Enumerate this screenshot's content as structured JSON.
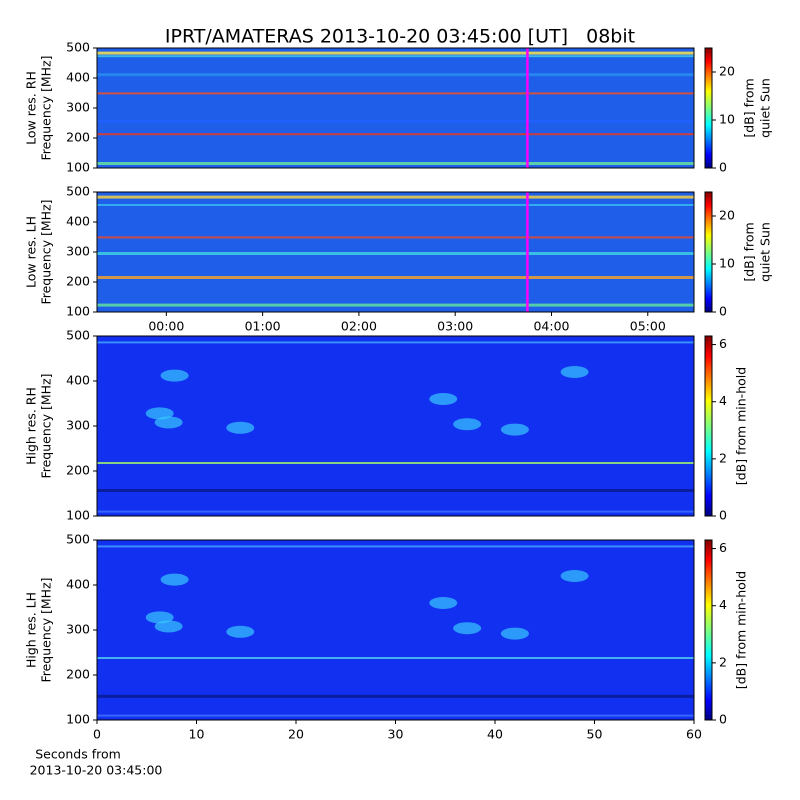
{
  "title": "IPRT/AMATERAS 2013-10-20 03:45:00 [UT]   08bit",
  "chart_data": [
    {
      "type": "heatmap",
      "colormap": "jet",
      "ylabel": [
        "Low res. RH",
        "Frequency [MHz]"
      ],
      "ylim": [
        100,
        500
      ],
      "yticks": [
        100,
        200,
        300,
        400,
        500
      ],
      "xlim": [
        -0.72,
        5.48
      ],
      "marker_x": 3.75,
      "marker_color": "#ff00ff",
      "colorbar": {
        "label": [
          "[dB] from",
          "quiet Sun"
        ],
        "lim": [
          0,
          25
        ],
        "ticks": [
          0,
          10,
          20
        ]
      }
    },
    {
      "type": "heatmap",
      "colormap": "jet",
      "ylabel": [
        "Low res. LH",
        "Frequency [MHz]"
      ],
      "ylim": [
        100,
        500
      ],
      "yticks": [
        100,
        200,
        300,
        400,
        500
      ],
      "xlim": [
        -0.72,
        5.48
      ],
      "xticks": [
        {
          "value": 0,
          "label": "00:00"
        },
        {
          "value": 1,
          "label": "01:00"
        },
        {
          "value": 2,
          "label": "02:00"
        },
        {
          "value": 3,
          "label": "03:00"
        },
        {
          "value": 4,
          "label": "04:00"
        },
        {
          "value": 5,
          "label": "05:00"
        }
      ],
      "marker_x": 3.75,
      "marker_color": "#ff00ff",
      "colorbar": {
        "label": [
          "[dB] from",
          "quiet Sun"
        ],
        "lim": [
          0,
          25
        ],
        "ticks": [
          0,
          10,
          20
        ]
      }
    },
    {
      "type": "heatmap",
      "colormap": "jet",
      "ylabel": [
        "High res. RH",
        "Frequency [MHz]"
      ],
      "ylim": [
        100,
        500
      ],
      "yticks": [
        100,
        200,
        300,
        400,
        500
      ],
      "xlim": [
        0,
        60
      ],
      "colorbar": {
        "label": [
          "[dB] from min-hold"
        ],
        "lim": [
          0,
          6.3
        ],
        "ticks": [
          0,
          2,
          4,
          6
        ]
      }
    },
    {
      "type": "heatmap",
      "colormap": "jet",
      "ylabel": [
        "High res. LH",
        "Frequency [MHz]"
      ],
      "ylim": [
        100,
        500
      ],
      "yticks": [
        100,
        200,
        300,
        400,
        500
      ],
      "xlim": [
        0,
        60
      ],
      "xticks": [
        0,
        10,
        20,
        30,
        40,
        50,
        60
      ],
      "xlabel": [
        "Seconds from",
        "2013-10-20 03:45:00"
      ],
      "colorbar": {
        "label": [
          "[dB] from min-hold"
        ],
        "lim": [
          0,
          6.3
        ],
        "ticks": [
          0,
          2,
          4,
          6
        ]
      }
    }
  ]
}
